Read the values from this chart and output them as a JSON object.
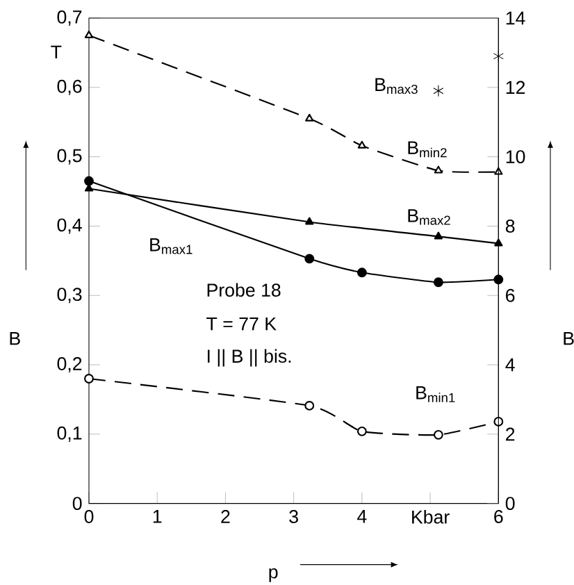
{
  "chart_data": {
    "type": "line",
    "xlabel": "p",
    "ylabel": "B",
    "y2label": "B",
    "annotations": [
      "T",
      "Probe 18",
      "T = 77 K",
      "I || B || bis."
    ],
    "xlim": [
      0,
      6
    ],
    "xticks": [
      0,
      1,
      2,
      3,
      4,
      {
        "value": 5,
        "label": "Kbar"
      },
      6
    ],
    "ylim": [
      0,
      0.7
    ],
    "yticks": [
      0,
      {
        "value": 0.1,
        "label": "0,1"
      },
      {
        "value": 0.2,
        "label": "0,2"
      },
      {
        "value": 0.3,
        "label": "0,3"
      },
      {
        "value": 0.4,
        "label": "0,4"
      },
      {
        "value": 0.5,
        "label": "0,5"
      },
      {
        "value": 0.6,
        "label": "0,6"
      },
      {
        "value": 0.7,
        "label": "0,7"
      }
    ],
    "y2lim": [
      0,
      14
    ],
    "y2ticks": [
      0,
      2,
      4,
      6,
      8,
      10,
      12,
      14
    ],
    "grid": false,
    "series": [
      {
        "name": "B$_{max1}$",
        "color": "#000000",
        "marker": "circle",
        "line_style": "solid",
        "x": [
          0,
          3.23,
          4.0,
          5.12,
          6
        ],
        "values": [
          0.465,
          0.353,
          0.333,
          0.319,
          0.323
        ]
      },
      {
        "name": "B$_{max2}$",
        "color": "#000000",
        "marker": "triangle",
        "line_style": "solid",
        "x": [
          0,
          3.23,
          5.12,
          6
        ],
        "values": [
          0.454,
          0.406,
          0.385,
          0.375
        ]
      },
      {
        "name": "B$_{min2}$",
        "color": "#000000",
        "marker": "triangle",
        "line_style": "dashed",
        "x": [
          0,
          3.23,
          4.0,
          5.12,
          6
        ],
        "values": [
          0.675,
          0.555,
          0.516,
          0.48,
          0.478
        ]
      },
      {
        "name": "B$_{min1}$",
        "color": "#000000",
        "marker": "circle",
        "line_style": "dashed",
        "x": [
          0,
          3.23,
          4.0,
          5.12,
          6
        ],
        "values": [
          0.18,
          0.141,
          0.104,
          0.099,
          0.118
        ]
      },
      {
        "name": "B$_{max3}$",
        "type": "scatter",
        "axis": "y2",
        "color": "#000000",
        "marker": "cross",
        "x": [
          5.12,
          6
        ],
        "values": [
          11.9,
          12.9
        ]
      }
    ]
  }
}
